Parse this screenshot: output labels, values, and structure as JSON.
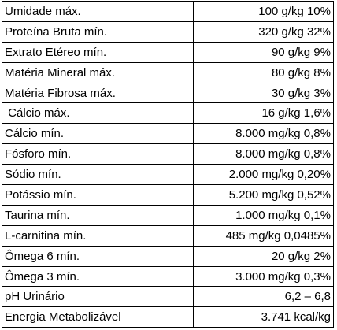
{
  "table": {
    "rows": [
      [
        "Umidade máx.",
        "100 g/kg 10%"
      ],
      [
        "Proteína Bruta mín.",
        "320 g/kg 32%"
      ],
      [
        "Extrato Etéreo mín.",
        "90 g/kg 9%"
      ],
      [
        "Matéria Mineral máx.",
        "80 g/kg 8%"
      ],
      [
        "Matéria Fibrosa máx.",
        "30 g/kg 3%"
      ],
      [
        " Cálcio máx.",
        "16 g/kg 1,6%"
      ],
      [
        "Cálcio mín.",
        "8.000 mg/kg 0,8%"
      ],
      [
        "Fósforo mín.",
        "8.000 mg/kg 0,8%"
      ],
      [
        "Sódio mín.",
        "2.000 mg/kg 0,20%"
      ],
      [
        "Potássio mín.",
        "5.200 mg/kg 0,52%"
      ],
      [
        "Taurina mín.",
        "1.000 mg/kg 0,1%"
      ],
      [
        "L-carnitina mín.",
        "485 mg/kg 0,0485%"
      ],
      [
        "Ômega 6 mín.",
        "20 g/kg 2%"
      ],
      [
        "Ômega 3 mín.",
        "3.000 mg/kg 0,3%"
      ],
      [
        "pH Urinário",
        "6,2 – 6,8"
      ],
      [
        "Energia Metabolizável",
        "3.741 kcal/kg"
      ]
    ]
  }
}
